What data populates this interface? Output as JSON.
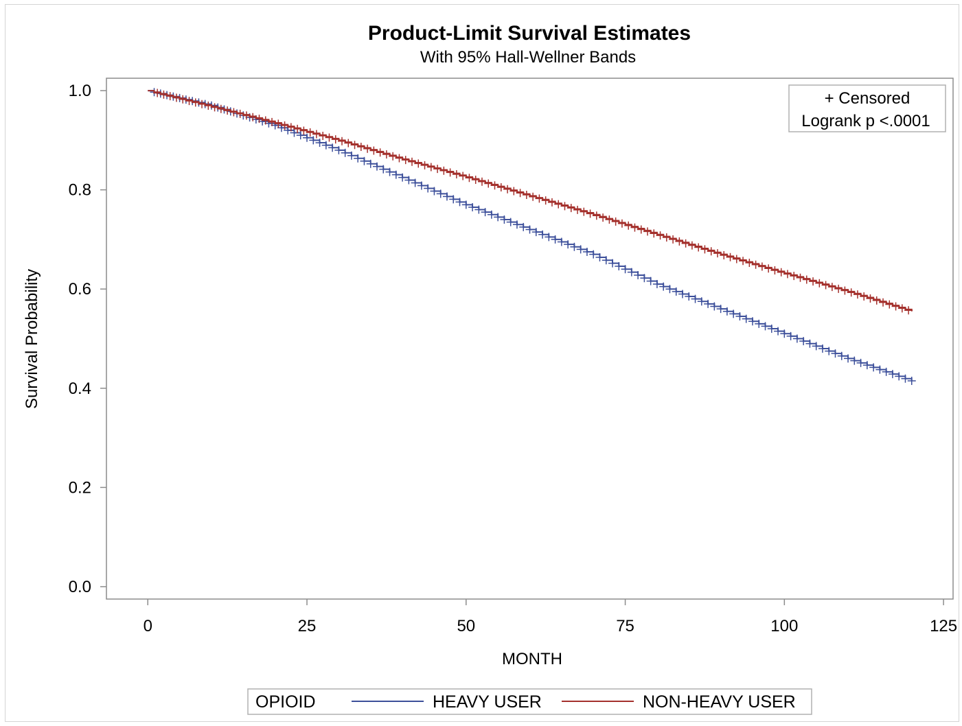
{
  "chart_data": {
    "type": "line",
    "title": "Product-Limit Survival Estimates",
    "subtitle": "With 95% Hall-Wellner Bands",
    "xlabel": "MONTH",
    "ylabel": "Survival Probability",
    "xlim": [
      -6.5,
      126.5
    ],
    "ylim": [
      -0.025,
      1.025
    ],
    "x_ticks": [
      0,
      25,
      50,
      75,
      100,
      125
    ],
    "x_tick_labels": [
      "0",
      "25",
      "50",
      "75",
      "100",
      "125"
    ],
    "y_ticks": [
      0.0,
      0.2,
      0.4,
      0.6,
      0.8,
      1.0
    ],
    "y_tick_labels": [
      "0.0",
      "0.2",
      "0.4",
      "0.6",
      "0.8",
      "1.0"
    ],
    "grid": false,
    "censor_marker": "+",
    "inset": {
      "lines": [
        "+ Censored",
        "Logrank p <.0001"
      ],
      "position": "top-right"
    },
    "legend": {
      "title": "OPIOID",
      "position": "bottom",
      "entries": [
        {
          "label": "HEAVY USER",
          "color": "#3c4f9a"
        },
        {
          "label": "NON-HEAVY USER",
          "color": "#a4302c"
        }
      ]
    },
    "series": [
      {
        "name": "HEAVY USER",
        "color": "#3c4f9a",
        "x": [
          0,
          10,
          20,
          30,
          40,
          50,
          60,
          70,
          80,
          90,
          100,
          110,
          120
        ],
        "y": [
          1.0,
          0.97,
          0.93,
          0.88,
          0.825,
          0.77,
          0.72,
          0.67,
          0.61,
          0.56,
          0.51,
          0.46,
          0.415
        ]
      },
      {
        "name": "NON-HEAVY USER",
        "color": "#a4302c",
        "x": [
          0,
          10,
          20,
          30,
          40,
          50,
          60,
          70,
          80,
          90,
          100,
          110,
          120
        ],
        "y": [
          1.0,
          0.968,
          0.935,
          0.9,
          0.862,
          0.826,
          0.788,
          0.75,
          0.71,
          0.67,
          0.632,
          0.595,
          0.555
        ]
      }
    ]
  }
}
